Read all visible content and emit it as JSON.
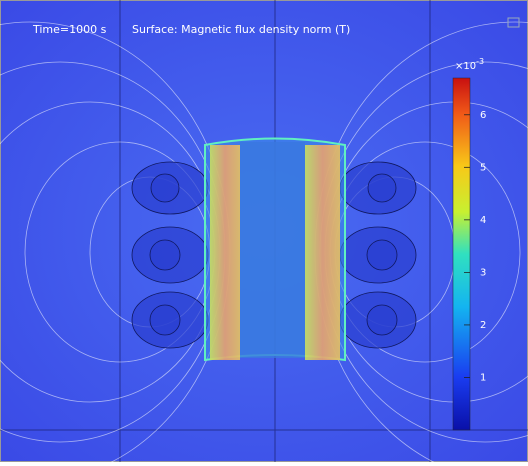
{
  "title": {
    "time": "Time=1000 s",
    "surface": "Surface: Magnetic flux density norm (T)"
  },
  "colorbar": {
    "multiplier": "×10",
    "exponent": "-3",
    "range": [
      0,
      6.7
    ],
    "ticks": [
      1,
      2,
      3,
      4,
      5,
      6
    ]
  }
}
